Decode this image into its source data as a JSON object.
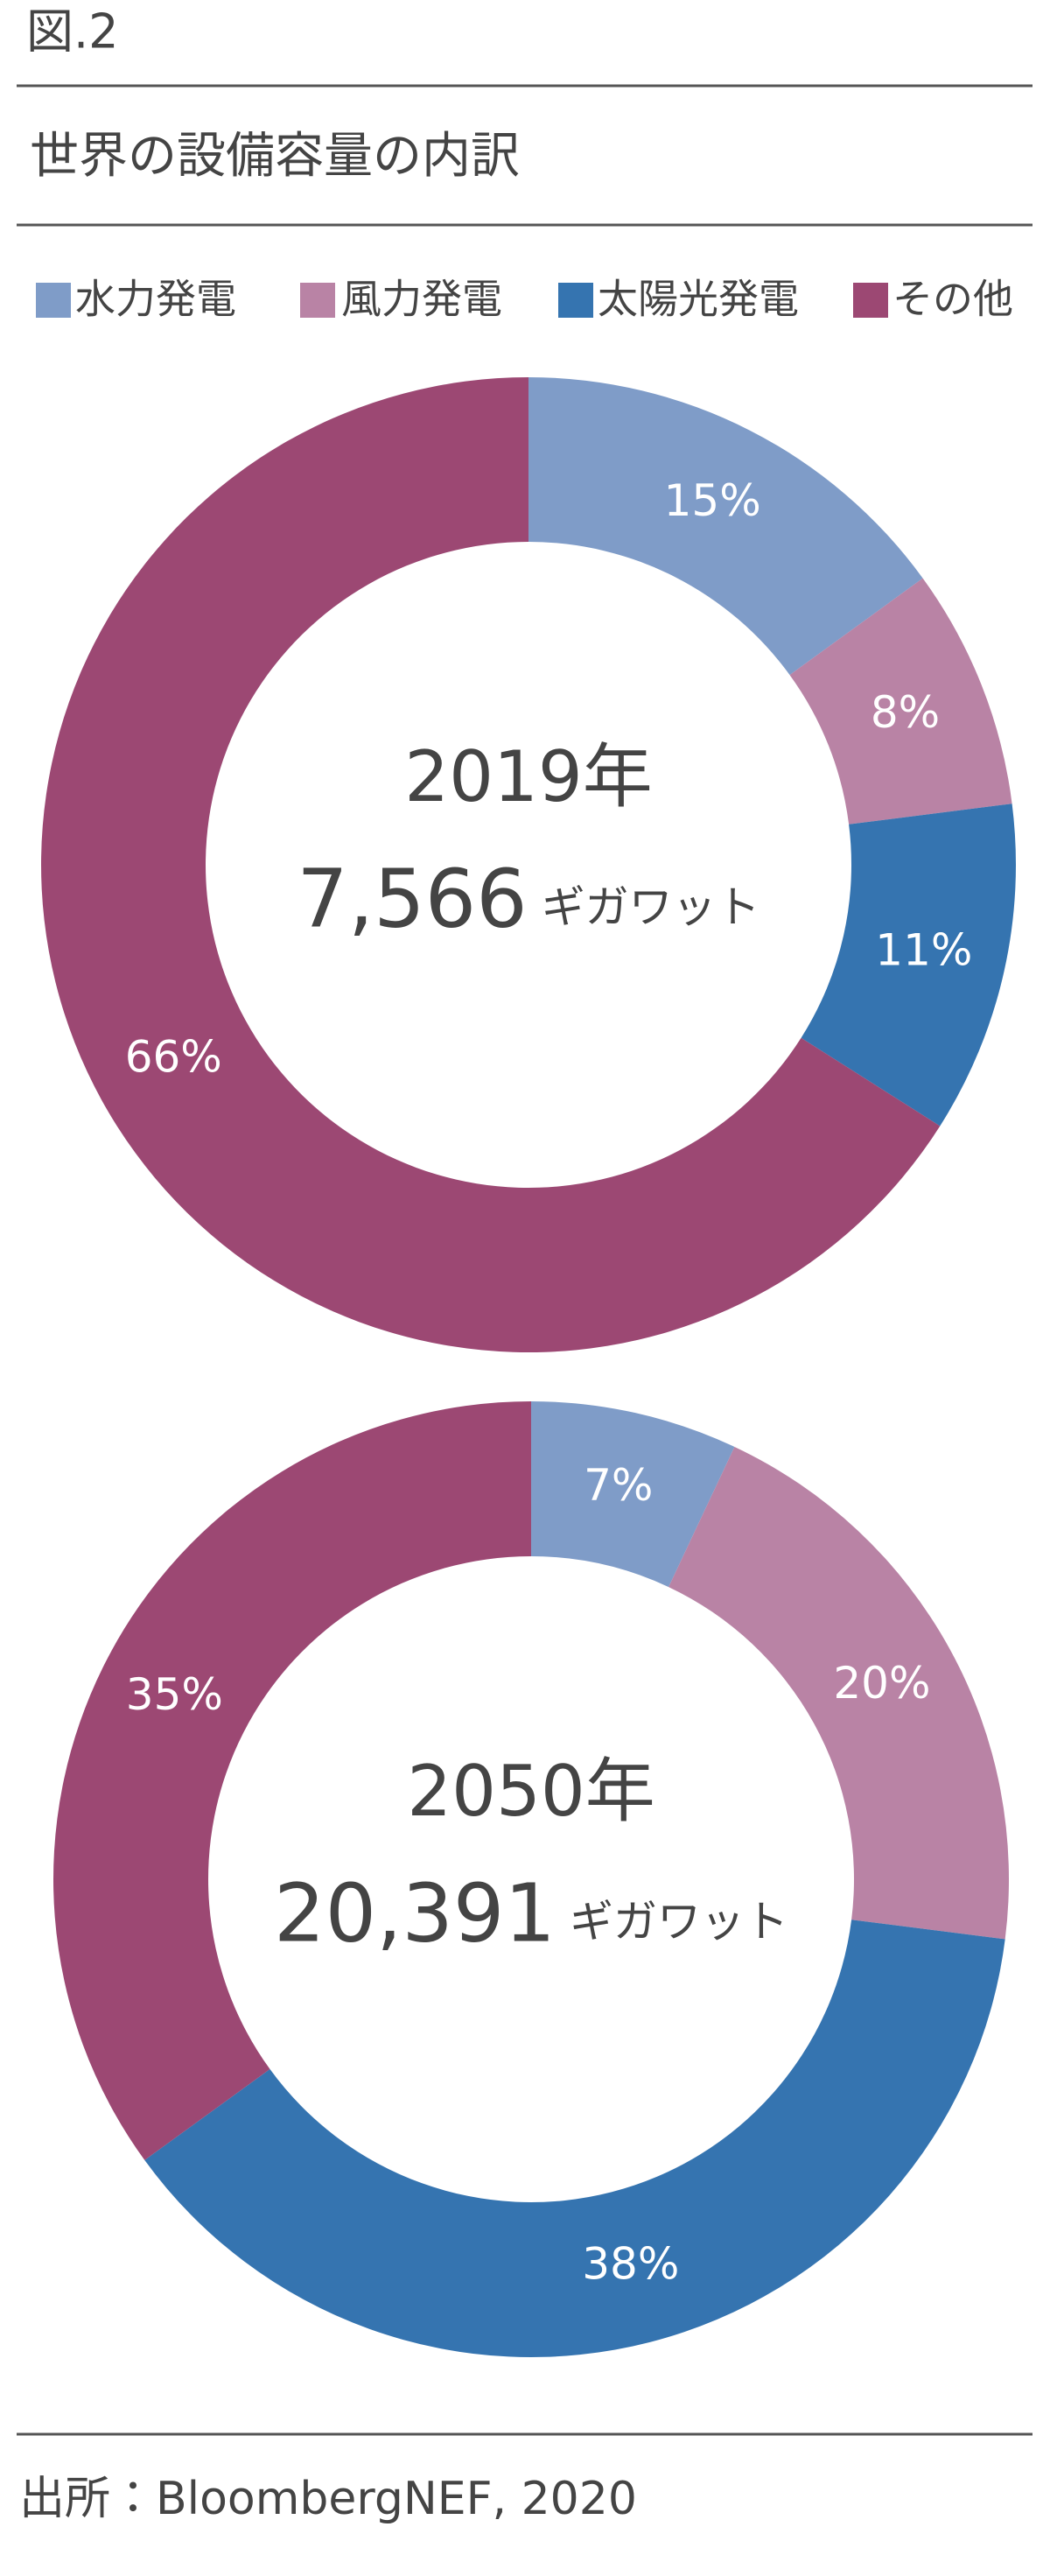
{
  "figure_label": "図.2",
  "title": "世界の設備容量の内訳",
  "source": "出所：BloombergNEF, 2020",
  "chart_data": [
    {
      "type": "pie",
      "center_title": "2019年",
      "total": {
        "value": 7566,
        "label": "7,566"
      },
      "total_unit": "ギガワット",
      "categories": [
        "水力発電",
        "風力発電",
        "太陽光発電",
        "その他"
      ],
      "values": [
        15,
        8,
        11,
        66
      ],
      "value_labels": [
        "15%",
        "8%",
        "11%",
        "66%"
      ],
      "colors": [
        "#7f9cc8",
        "#b983a5",
        "#3574b0",
        "#9c4873"
      ]
    },
    {
      "type": "pie",
      "center_title": "2050年",
      "total": {
        "value": 20391,
        "label": "20,391"
      },
      "total_unit": "ギガワット",
      "categories": [
        "水力発電",
        "風力発電",
        "太陽光発電",
        "その他"
      ],
      "values": [
        7,
        20,
        38,
        35
      ],
      "value_labels": [
        "7%",
        "20%",
        "38%",
        "35%"
      ],
      "colors": [
        "#7f9cc8",
        "#b983a5",
        "#3574b0",
        "#9c4873"
      ]
    }
  ]
}
